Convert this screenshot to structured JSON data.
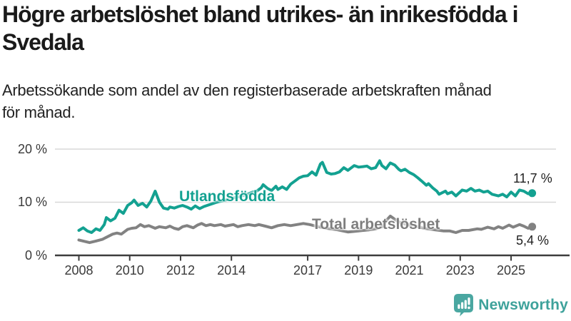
{
  "header": {
    "title": "Högre arbetslöshet bland utrikes- än inrikesfödda i Svedala",
    "title_lines": [
      "Högre arbetslöshet bland utrikes- än inrikesfödda i",
      "Svedala"
    ],
    "subtitle": "Arbetssökande som andel av den registerbaserade arbetskraften månad för månad.",
    "subtitle_lines": [
      "Arbetssökande som andel av den registerbaserade arbetskraften månad",
      "för månad."
    ]
  },
  "colors": {
    "accent_teal": "#13A191",
    "series_gray": "#828282",
    "gridline": "#d8d8d8",
    "axis": "#3d3d3d",
    "logo_teal": "#4AA7A1",
    "wordmark_teal": "#3EA29B"
  },
  "chart_data": {
    "type": "line",
    "title": "Högre arbetslöshet bland utrikes- än inrikesfödda i Svedala",
    "subtitle": "Arbetssökande som andel av den registerbaserade arbetskraften månad för månad.",
    "unit": "%",
    "grid": "horizontal",
    "legend_position": "inline-labels",
    "xlim": [
      2007.1,
      2026.8
    ],
    "ylim": [
      0,
      21.8
    ],
    "y_ticks": [
      {
        "value": 0,
        "label": "0 %"
      },
      {
        "value": 10,
        "label": "10 %"
      },
      {
        "value": 20,
        "label": "20 %"
      }
    ],
    "x_ticks": [
      {
        "year": 2008,
        "label": "2008"
      },
      {
        "year": 2010,
        "label": "2010"
      },
      {
        "year": 2012,
        "label": "2012"
      },
      {
        "year": 2014,
        "label": "2014"
      },
      {
        "year": 2017,
        "label": "2017"
      },
      {
        "year": 2019,
        "label": "2019"
      },
      {
        "year": 2021,
        "label": "2021"
      },
      {
        "year": 2023,
        "label": "2023"
      },
      {
        "year": 2025,
        "label": "2025"
      }
    ],
    "series": [
      {
        "id": "utlandsfodda",
        "name": "Utlandsfödda",
        "color": "#13A191",
        "end_label": "11,7 %",
        "end_value": 11.7,
        "points": [
          [
            2008.0,
            4.7
          ],
          [
            2008.17,
            5.2
          ],
          [
            2008.33,
            4.6
          ],
          [
            2008.5,
            4.3
          ],
          [
            2008.67,
            5.0
          ],
          [
            2008.83,
            4.7
          ],
          [
            2009.0,
            5.8
          ],
          [
            2009.08,
            7.1
          ],
          [
            2009.25,
            6.5
          ],
          [
            2009.42,
            7.0
          ],
          [
            2009.58,
            8.5
          ],
          [
            2009.75,
            7.9
          ],
          [
            2009.92,
            9.4
          ],
          [
            2010.08,
            9.9
          ],
          [
            2010.17,
            10.4
          ],
          [
            2010.33,
            9.4
          ],
          [
            2010.5,
            9.8
          ],
          [
            2010.67,
            9.1
          ],
          [
            2010.83,
            10.2
          ],
          [
            2011.0,
            12.1
          ],
          [
            2011.17,
            10.0
          ],
          [
            2011.33,
            8.9
          ],
          [
            2011.5,
            8.7
          ],
          [
            2011.58,
            9.1
          ],
          [
            2011.75,
            8.9
          ],
          [
            2011.92,
            9.2
          ],
          [
            2012.08,
            9.4
          ],
          [
            2012.25,
            9.1
          ],
          [
            2012.42,
            8.7
          ],
          [
            2012.58,
            9.3
          ],
          [
            2012.75,
            8.8
          ],
          [
            2012.92,
            9.2
          ],
          [
            2013.17,
            9.6
          ],
          [
            2013.42,
            10.0
          ],
          [
            2013.67,
            10.3
          ],
          [
            2013.92,
            10.6
          ],
          [
            2014.17,
            10.9
          ],
          [
            2014.42,
            11.2
          ],
          [
            2014.67,
            11.6
          ],
          [
            2014.83,
            11.9
          ],
          [
            2015.0,
            12.1
          ],
          [
            2015.17,
            12.7
          ],
          [
            2015.25,
            13.3
          ],
          [
            2015.42,
            12.6
          ],
          [
            2015.58,
            12.2
          ],
          [
            2015.75,
            13.0
          ],
          [
            2015.83,
            12.4
          ],
          [
            2016.0,
            12.9
          ],
          [
            2016.17,
            12.4
          ],
          [
            2016.33,
            13.4
          ],
          [
            2016.5,
            14.0
          ],
          [
            2016.67,
            14.6
          ],
          [
            2016.83,
            14.9
          ],
          [
            2017.0,
            15.0
          ],
          [
            2017.17,
            15.7
          ],
          [
            2017.33,
            15.1
          ],
          [
            2017.5,
            17.2
          ],
          [
            2017.58,
            17.5
          ],
          [
            2017.75,
            15.6
          ],
          [
            2017.92,
            15.3
          ],
          [
            2018.08,
            15.4
          ],
          [
            2018.25,
            15.7
          ],
          [
            2018.42,
            16.5
          ],
          [
            2018.58,
            16.0
          ],
          [
            2018.83,
            16.9
          ],
          [
            2019.0,
            16.6
          ],
          [
            2019.17,
            16.7
          ],
          [
            2019.33,
            16.8
          ],
          [
            2019.5,
            16.3
          ],
          [
            2019.67,
            16.5
          ],
          [
            2019.83,
            17.8
          ],
          [
            2019.92,
            16.9
          ],
          [
            2020.08,
            16.3
          ],
          [
            2020.17,
            16.9
          ],
          [
            2020.25,
            17.4
          ],
          [
            2020.42,
            17.0
          ],
          [
            2020.58,
            16.2
          ],
          [
            2020.67,
            15.9
          ],
          [
            2020.83,
            16.2
          ],
          [
            2021.0,
            15.6
          ],
          [
            2021.17,
            15.2
          ],
          [
            2021.33,
            14.6
          ],
          [
            2021.5,
            13.9
          ],
          [
            2021.67,
            13.2
          ],
          [
            2021.75,
            13.5
          ],
          [
            2021.92,
            12.7
          ],
          [
            2022.08,
            12.1
          ],
          [
            2022.17,
            11.5
          ],
          [
            2022.42,
            12.1
          ],
          [
            2022.5,
            11.6
          ],
          [
            2022.67,
            11.9
          ],
          [
            2022.83,
            11.2
          ],
          [
            2023.08,
            12.3
          ],
          [
            2023.25,
            12.1
          ],
          [
            2023.42,
            12.6
          ],
          [
            2023.58,
            12.1
          ],
          [
            2023.75,
            12.3
          ],
          [
            2023.92,
            11.9
          ],
          [
            2024.08,
            12.1
          ],
          [
            2024.25,
            11.5
          ],
          [
            2024.5,
            11.2
          ],
          [
            2024.67,
            11.5
          ],
          [
            2024.83,
            11.0
          ],
          [
            2025.0,
            11.9
          ],
          [
            2025.17,
            11.2
          ],
          [
            2025.33,
            12.3
          ],
          [
            2025.5,
            12.1
          ],
          [
            2025.67,
            11.6
          ],
          [
            2025.83,
            11.7
          ]
        ]
      },
      {
        "id": "total",
        "name": "Total arbetslöshet",
        "color": "#828282",
        "end_label": "5,4 %",
        "end_value": 5.4,
        "points": [
          [
            2008.0,
            2.9
          ],
          [
            2008.17,
            2.7
          ],
          [
            2008.42,
            2.4
          ],
          [
            2008.67,
            2.7
          ],
          [
            2008.92,
            3.0
          ],
          [
            2009.08,
            3.4
          ],
          [
            2009.33,
            4.0
          ],
          [
            2009.5,
            4.2
          ],
          [
            2009.67,
            4.0
          ],
          [
            2009.92,
            4.9
          ],
          [
            2010.08,
            5.1
          ],
          [
            2010.25,
            5.2
          ],
          [
            2010.42,
            5.8
          ],
          [
            2010.58,
            5.4
          ],
          [
            2010.75,
            5.6
          ],
          [
            2011.0,
            5.1
          ],
          [
            2011.17,
            5.4
          ],
          [
            2011.42,
            5.2
          ],
          [
            2011.58,
            5.5
          ],
          [
            2011.75,
            5.1
          ],
          [
            2011.92,
            4.9
          ],
          [
            2012.08,
            5.4
          ],
          [
            2012.25,
            5.6
          ],
          [
            2012.5,
            5.2
          ],
          [
            2012.67,
            5.7
          ],
          [
            2012.83,
            6.0
          ],
          [
            2013.0,
            5.6
          ],
          [
            2013.17,
            5.8
          ],
          [
            2013.33,
            5.6
          ],
          [
            2013.58,
            5.8
          ],
          [
            2013.75,
            5.5
          ],
          [
            2014.08,
            5.8
          ],
          [
            2014.25,
            5.4
          ],
          [
            2014.42,
            5.6
          ],
          [
            2014.67,
            5.8
          ],
          [
            2014.92,
            5.6
          ],
          [
            2015.08,
            5.8
          ],
          [
            2015.33,
            5.5
          ],
          [
            2015.58,
            5.2
          ],
          [
            2015.83,
            5.6
          ],
          [
            2016.08,
            5.8
          ],
          [
            2016.33,
            5.6
          ],
          [
            2016.58,
            5.8
          ],
          [
            2016.83,
            6.0
          ],
          [
            2017.08,
            5.8
          ],
          [
            2017.42,
            5.4
          ],
          [
            2017.75,
            5.1
          ],
          [
            2018.17,
            4.8
          ],
          [
            2018.58,
            4.4
          ],
          [
            2019.0,
            4.6
          ],
          [
            2019.42,
            4.8
          ],
          [
            2019.67,
            5.0
          ],
          [
            2019.92,
            5.4
          ],
          [
            2020.08,
            6.5
          ],
          [
            2020.25,
            7.4
          ],
          [
            2020.42,
            6.8
          ],
          [
            2020.58,
            6.3
          ],
          [
            2020.83,
            5.9
          ],
          [
            2021.0,
            5.7
          ],
          [
            2021.25,
            5.5
          ],
          [
            2021.58,
            5.1
          ],
          [
            2022.0,
            4.8
          ],
          [
            2022.33,
            4.6
          ],
          [
            2022.58,
            4.6
          ],
          [
            2022.83,
            4.3
          ],
          [
            2023.08,
            4.7
          ],
          [
            2023.33,
            4.7
          ],
          [
            2023.67,
            5.0
          ],
          [
            2023.83,
            4.9
          ],
          [
            2024.08,
            5.3
          ],
          [
            2024.33,
            5.0
          ],
          [
            2024.5,
            5.4
          ],
          [
            2024.67,
            5.1
          ],
          [
            2024.92,
            5.7
          ],
          [
            2025.08,
            5.3
          ],
          [
            2025.33,
            5.8
          ],
          [
            2025.5,
            5.5
          ],
          [
            2025.67,
            5.1
          ],
          [
            2025.83,
            5.4
          ]
        ]
      }
    ]
  },
  "footer": {
    "brand": "Newsworthy",
    "logo_icon": "newsworthy-bar-chart-speech-bubble-icon"
  }
}
